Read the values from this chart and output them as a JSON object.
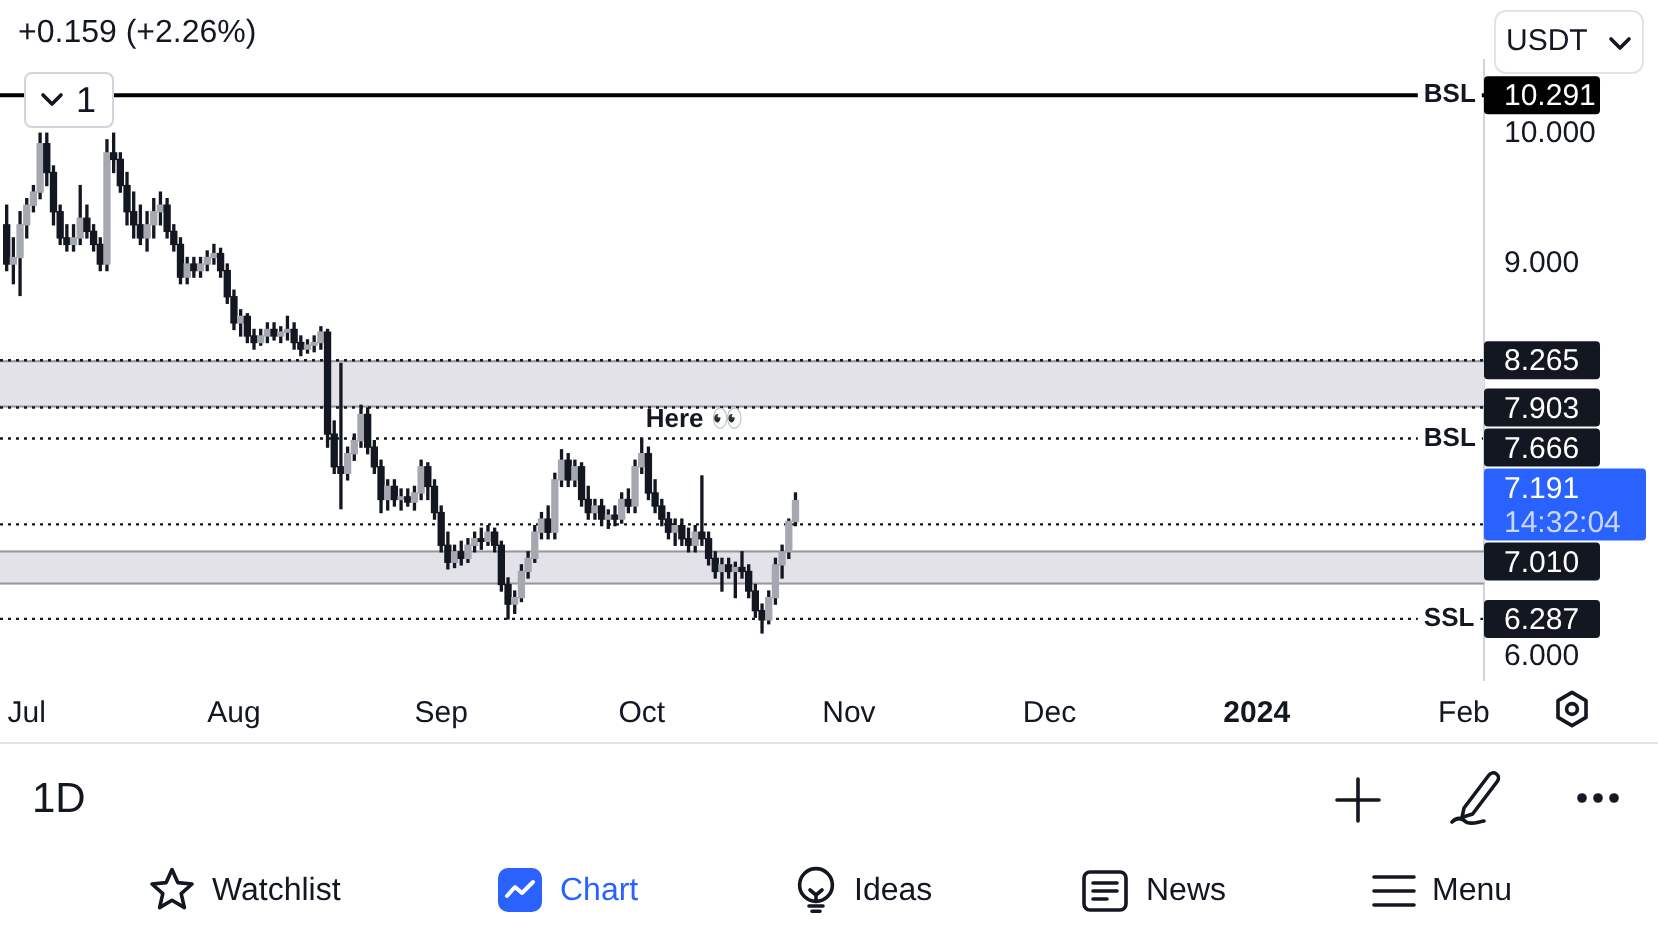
{
  "chart_data": {
    "type": "candlestick",
    "color": "#131722",
    "x": [
      "2023-06-28",
      "2023-06-29",
      "2023-06-30",
      "2023-07-01",
      "2023-07-02",
      "2023-07-03",
      "2023-07-04",
      "2023-07-05",
      "2023-07-06",
      "2023-07-07",
      "2023-07-08",
      "2023-07-09",
      "2023-07-10",
      "2023-07-11",
      "2023-07-12",
      "2023-07-13",
      "2023-07-14",
      "2023-07-15",
      "2023-07-16",
      "2023-07-17",
      "2023-07-18",
      "2023-07-19",
      "2023-07-20",
      "2023-07-21",
      "2023-07-22",
      "2023-07-23",
      "2023-07-24",
      "2023-07-25",
      "2023-07-26",
      "2023-07-27",
      "2023-07-28",
      "2023-07-29",
      "2023-07-30",
      "2023-07-31",
      "2023-08-01",
      "2023-08-02",
      "2023-08-03",
      "2023-08-04",
      "2023-08-05",
      "2023-08-06",
      "2023-08-07",
      "2023-08-08",
      "2023-08-09",
      "2023-08-10",
      "2023-08-11",
      "2023-08-12",
      "2023-08-13",
      "2023-08-14",
      "2023-08-15",
      "2023-08-16",
      "2023-08-17",
      "2023-08-18",
      "2023-08-19",
      "2023-08-20",
      "2023-08-21",
      "2023-08-22",
      "2023-08-23",
      "2023-08-24",
      "2023-08-25",
      "2023-08-26",
      "2023-08-27",
      "2023-08-28",
      "2023-08-29",
      "2023-08-30",
      "2023-08-31",
      "2023-09-01",
      "2023-09-02",
      "2023-09-03",
      "2023-09-04",
      "2023-09-05",
      "2023-09-06",
      "2023-09-07",
      "2023-09-08",
      "2023-09-09",
      "2023-09-10",
      "2023-09-11",
      "2023-09-12",
      "2023-09-13",
      "2023-09-14",
      "2023-09-15",
      "2023-09-16",
      "2023-09-17",
      "2023-09-18",
      "2023-09-19",
      "2023-09-20",
      "2023-09-21",
      "2023-09-22",
      "2023-09-23",
      "2023-09-24",
      "2023-09-25",
      "2023-09-26",
      "2023-09-27",
      "2023-09-28",
      "2023-09-29",
      "2023-09-30",
      "2023-10-01",
      "2023-10-02",
      "2023-10-03",
      "2023-10-04",
      "2023-10-05",
      "2023-10-06",
      "2023-10-07",
      "2023-10-08",
      "2023-10-09",
      "2023-10-10",
      "2023-10-11",
      "2023-10-12",
      "2023-10-13",
      "2023-10-14",
      "2023-10-15",
      "2023-10-16",
      "2023-10-17",
      "2023-10-18",
      "2023-10-19",
      "2023-10-20",
      "2023-10-21",
      "2023-10-22",
      "2023-10-23",
      "2023-10-24"
    ],
    "ohlc": [
      [
        9.3,
        9.45,
        8.95,
        9.0
      ],
      [
        9.0,
        9.2,
        8.85,
        9.05
      ],
      [
        9.05,
        9.4,
        8.76,
        9.3
      ],
      [
        9.3,
        9.5,
        9.2,
        9.45
      ],
      [
        9.45,
        9.6,
        9.4,
        9.55
      ],
      [
        9.55,
        10.0,
        9.5,
        9.92
      ],
      [
        9.92,
        10.0,
        9.6,
        9.7
      ],
      [
        9.7,
        9.75,
        9.3,
        9.4
      ],
      [
        9.4,
        9.45,
        9.15,
        9.2
      ],
      [
        9.2,
        9.3,
        9.1,
        9.15
      ],
      [
        9.15,
        9.3,
        9.1,
        9.2
      ],
      [
        9.2,
        9.6,
        9.15,
        9.35
      ],
      [
        9.35,
        9.45,
        9.2,
        9.25
      ],
      [
        9.25,
        9.3,
        9.1,
        9.15
      ],
      [
        9.15,
        9.2,
        8.95,
        9.0
      ],
      [
        9.0,
        9.95,
        8.95,
        9.85
      ],
      [
        9.85,
        10.0,
        9.7,
        9.8
      ],
      [
        9.8,
        9.85,
        9.55,
        9.6
      ],
      [
        9.6,
        9.7,
        9.3,
        9.4
      ],
      [
        9.4,
        9.55,
        9.2,
        9.3
      ],
      [
        9.3,
        9.45,
        9.15,
        9.2
      ],
      [
        9.2,
        9.4,
        9.1,
        9.3
      ],
      [
        9.3,
        9.5,
        9.2,
        9.4
      ],
      [
        9.4,
        9.55,
        9.3,
        9.45
      ],
      [
        9.45,
        9.5,
        9.2,
        9.25
      ],
      [
        9.25,
        9.3,
        9.1,
        9.15
      ],
      [
        9.15,
        9.2,
        8.85,
        8.9
      ],
      [
        8.9,
        9.05,
        8.85,
        9.0
      ],
      [
        9.0,
        9.05,
        8.9,
        8.95
      ],
      [
        8.95,
        9.05,
        8.9,
        9.0
      ],
      [
        9.0,
        9.1,
        8.95,
        9.05
      ],
      [
        9.05,
        9.15,
        9.0,
        9.08
      ],
      [
        9.08,
        9.12,
        8.9,
        8.95
      ],
      [
        8.95,
        9.0,
        8.7,
        8.75
      ],
      [
        8.75,
        8.8,
        8.5,
        8.55
      ],
      [
        8.55,
        8.65,
        8.45,
        8.6
      ],
      [
        8.6,
        8.62,
        8.4,
        8.45
      ],
      [
        8.45,
        8.5,
        8.35,
        8.4
      ],
      [
        8.4,
        8.5,
        8.38,
        8.45
      ],
      [
        8.45,
        8.55,
        8.4,
        8.5
      ],
      [
        8.5,
        8.55,
        8.42,
        8.45
      ],
      [
        8.45,
        8.52,
        8.4,
        8.48
      ],
      [
        8.48,
        8.6,
        8.42,
        8.5
      ],
      [
        8.5,
        8.55,
        8.35,
        8.4
      ],
      [
        8.4,
        8.45,
        8.3,
        8.35
      ],
      [
        8.35,
        8.42,
        8.32,
        8.38
      ],
      [
        8.38,
        8.45,
        8.33,
        8.4
      ],
      [
        8.4,
        8.52,
        8.35,
        8.48
      ],
      [
        8.48,
        8.5,
        7.6,
        7.7
      ],
      [
        7.7,
        7.8,
        7.4,
        7.45
      ],
      [
        7.45,
        8.24,
        7.13,
        7.4
      ],
      [
        7.4,
        7.6,
        7.35,
        7.55
      ],
      [
        7.55,
        7.7,
        7.5,
        7.65
      ],
      [
        7.65,
        7.92,
        7.6,
        7.85
      ],
      [
        7.85,
        7.9,
        7.55,
        7.6
      ],
      [
        7.6,
        7.65,
        7.4,
        7.45
      ],
      [
        7.45,
        7.5,
        7.1,
        7.2
      ],
      [
        7.2,
        7.35,
        7.12,
        7.3
      ],
      [
        7.3,
        7.35,
        7.15,
        7.2
      ],
      [
        7.2,
        7.28,
        7.12,
        7.22
      ],
      [
        7.22,
        7.28,
        7.15,
        7.18
      ],
      [
        7.18,
        7.3,
        7.12,
        7.25
      ],
      [
        7.25,
        7.5,
        7.2,
        7.45
      ],
      [
        7.45,
        7.48,
        7.2,
        7.3
      ],
      [
        7.3,
        7.35,
        7.05,
        7.1
      ],
      [
        7.1,
        7.15,
        6.8,
        6.85
      ],
      [
        6.85,
        6.95,
        6.67,
        6.72
      ],
      [
        6.72,
        6.85,
        6.68,
        6.8
      ],
      [
        6.8,
        6.88,
        6.7,
        6.75
      ],
      [
        6.75,
        6.9,
        6.72,
        6.85
      ],
      [
        6.85,
        6.95,
        6.8,
        6.9
      ],
      [
        6.9,
        6.98,
        6.82,
        6.88
      ],
      [
        6.88,
        7.0,
        6.85,
        6.95
      ],
      [
        6.95,
        6.98,
        6.8,
        6.85
      ],
      [
        6.85,
        6.88,
        6.5,
        6.55
      ],
      [
        6.55,
        6.6,
        6.287,
        6.4
      ],
      [
        6.4,
        6.5,
        6.33,
        6.45
      ],
      [
        6.45,
        6.7,
        6.42,
        6.65
      ],
      [
        6.65,
        6.8,
        6.6,
        6.75
      ],
      [
        6.75,
        7.0,
        6.72,
        6.95
      ],
      [
        6.95,
        7.1,
        6.9,
        7.05
      ],
      [
        7.05,
        7.15,
        6.9,
        6.95
      ],
      [
        6.95,
        7.4,
        6.9,
        7.35
      ],
      [
        7.35,
        7.58,
        7.3,
        7.5
      ],
      [
        7.5,
        7.55,
        7.3,
        7.35
      ],
      [
        7.35,
        7.5,
        7.3,
        7.45
      ],
      [
        7.45,
        7.48,
        7.15,
        7.2
      ],
      [
        7.2,
        7.3,
        7.05,
        7.1
      ],
      [
        7.1,
        7.2,
        7.05,
        7.15
      ],
      [
        7.15,
        7.2,
        7.0,
        7.05
      ],
      [
        7.05,
        7.12,
        6.98,
        7.08
      ],
      [
        7.08,
        7.15,
        7.0,
        7.05
      ],
      [
        7.05,
        7.25,
        7.02,
        7.2
      ],
      [
        7.2,
        7.28,
        7.1,
        7.15
      ],
      [
        7.15,
        7.5,
        7.1,
        7.45
      ],
      [
        7.45,
        7.666,
        7.4,
        7.55
      ],
      [
        7.55,
        7.6,
        7.2,
        7.25
      ],
      [
        7.25,
        7.35,
        7.1,
        7.15
      ],
      [
        7.15,
        7.2,
        7.0,
        7.05
      ],
      [
        7.05,
        7.1,
        6.9,
        6.95
      ],
      [
        6.95,
        7.05,
        6.85,
        7.0
      ],
      [
        7.0,
        7.05,
        6.85,
        6.9
      ],
      [
        6.9,
        6.98,
        6.8,
        6.85
      ],
      [
        6.85,
        7.0,
        6.8,
        6.95
      ],
      [
        6.95,
        7.38,
        6.85,
        6.9
      ],
      [
        6.9,
        6.95,
        6.7,
        6.75
      ],
      [
        6.75,
        6.8,
        6.6,
        6.65
      ],
      [
        6.65,
        6.75,
        6.5,
        6.7
      ],
      [
        6.7,
        6.75,
        6.6,
        6.65
      ],
      [
        6.65,
        6.72,
        6.45,
        6.68
      ],
      [
        6.68,
        6.8,
        6.6,
        6.65
      ],
      [
        6.65,
        6.7,
        6.45,
        6.5
      ],
      [
        6.5,
        6.55,
        6.3,
        6.35
      ],
      [
        6.35,
        6.4,
        6.18,
        6.28
      ],
      [
        6.28,
        6.5,
        6.25,
        6.45
      ],
      [
        6.45,
        6.75,
        6.4,
        6.7
      ],
      [
        6.7,
        6.85,
        6.6,
        6.8
      ],
      [
        6.8,
        7.05,
        6.75,
        7.032
      ],
      [
        7.032,
        7.25,
        7.0,
        7.191
      ]
    ],
    "colors": [
      "#131722",
      "#a5a8b0",
      "#a5a8b0",
      "#a5a8b0",
      "#a5a8b0",
      "#a5a8b0",
      "#131722",
      "#131722",
      "#131722",
      "#131722",
      "#a5a8b0",
      "#a5a8b0",
      "#131722",
      "#131722",
      "#131722",
      "#a5a8b0",
      "#131722",
      "#131722",
      "#131722",
      "#131722",
      "#131722",
      "#a5a8b0",
      "#a5a8b0",
      "#a5a8b0",
      "#131722",
      "#131722",
      "#131722",
      "#a5a8b0",
      "#131722",
      "#a5a8b0",
      "#a5a8b0",
      "#a5a8b0",
      "#131722",
      "#131722",
      "#131722",
      "#a5a8b0",
      "#131722",
      "#131722",
      "#a5a8b0",
      "#a5a8b0",
      "#131722",
      "#a5a8b0",
      "#a5a8b0",
      "#131722",
      "#131722",
      "#a5a8b0",
      "#a5a8b0",
      "#a5a8b0",
      "#131722",
      "#131722",
      "#131722",
      "#a5a8b0",
      "#a5a8b0",
      "#a5a8b0",
      "#131722",
      "#131722",
      "#131722",
      "#a5a8b0",
      "#131722",
      "#a5a8b0",
      "#131722",
      "#a5a8b0",
      "#a5a8b0",
      "#131722",
      "#131722",
      "#131722",
      "#131722",
      "#a5a8b0",
      "#131722",
      "#a5a8b0",
      "#a5a8b0",
      "#131722",
      "#a5a8b0",
      "#131722",
      "#131722",
      "#131722",
      "#a5a8b0",
      "#a5a8b0",
      "#a5a8b0",
      "#a5a8b0",
      "#a5a8b0",
      "#131722",
      "#a5a8b0",
      "#a5a8b0",
      "#131722",
      "#a5a8b0",
      "#131722",
      "#131722",
      "#a5a8b0",
      "#131722",
      "#a5a8b0",
      "#131722",
      "#a5a8b0",
      "#131722",
      "#a5a8b0",
      "#a5a8b0",
      "#131722",
      "#131722",
      "#131722",
      "#131722",
      "#a5a8b0",
      "#131722",
      "#131722",
      "#a5a8b0",
      "#131722",
      "#131722",
      "#131722",
      "#a5a8b0",
      "#131722",
      "#a5a8b0",
      "#131722",
      "#131722",
      "#131722",
      "#131722",
      "#a5a8b0",
      "#a5a8b0",
      "#a5a8b0",
      "#a5a8b0",
      "#a5a8b0"
    ],
    "xlim": [
      "2023-06-27",
      "2024-02-04"
    ],
    "xticks": [
      {
        "value": "2023-07-01",
        "label": "Jul"
      },
      {
        "value": "2023-08-01",
        "label": "Aug"
      },
      {
        "value": "2023-09-01",
        "label": "Sep"
      },
      {
        "value": "2023-10-01",
        "label": "Oct"
      },
      {
        "value": "2023-11-01",
        "label": "Nov"
      },
      {
        "value": "2023-12-01",
        "label": "Dec"
      },
      {
        "value": "2024-01-01",
        "label": "2024"
      },
      {
        "value": "2024-02-01",
        "label": "Feb"
      }
    ],
    "ylim": [
      5.82,
      10.56
    ],
    "yticks": [
      {
        "value": 10,
        "label": "10.000"
      },
      {
        "value": 9,
        "label": "9.000"
      },
      {
        "value": 6,
        "label": "6.000"
      }
    ],
    "grid": false,
    "legend": false,
    "bands": [
      {
        "axis": "y",
        "from": 7.903,
        "to": 8.265,
        "color": "#e3e2e8"
      },
      {
        "axis": "y",
        "from": 6.55,
        "to": 6.81,
        "color": "#e3e2e8"
      }
    ],
    "ref_lines": [
      {
        "axis": "y",
        "value": 10.291,
        "label": "10.291",
        "color": "#000000",
        "line_style": "solid"
      },
      {
        "axis": "y",
        "value": 8.265,
        "label": "8.265",
        "color": "#131722",
        "line_style": "dotted"
      },
      {
        "axis": "y",
        "value": 7.903,
        "label": "7.903",
        "color": "#131722",
        "line_style": "dotted"
      },
      {
        "axis": "y",
        "value": 7.666,
        "label": "7.666",
        "color": "#131722",
        "line_style": "dotted"
      },
      {
        "axis": "y",
        "value": 7.01,
        "label": "7.010",
        "color": "#131722",
        "line_style": "dotted"
      },
      {
        "axis": "y",
        "value": 6.287,
        "label": "6.287",
        "color": "#131722",
        "line_style": "dotted"
      }
    ],
    "annotations": [
      "+0.159 (+2.26%)",
      "USDT",
      "1",
      "7.191",
      "14:32:04",
      "1D",
      "Watchlist",
      "Chart",
      "Ideas",
      "News",
      "Menu",
      {
        "text": "Here 👀",
        "x": "2023-10-01",
        "y": 7.666
      },
      {
        "text": "BSL",
        "x": "2024-01-26",
        "y": 10.291
      },
      {
        "text": "BSL",
        "x": "2024-01-26",
        "y": 7.666
      },
      {
        "text": "SSL",
        "x": "2024-01-26",
        "y": 6.287
      }
    ]
  }
}
